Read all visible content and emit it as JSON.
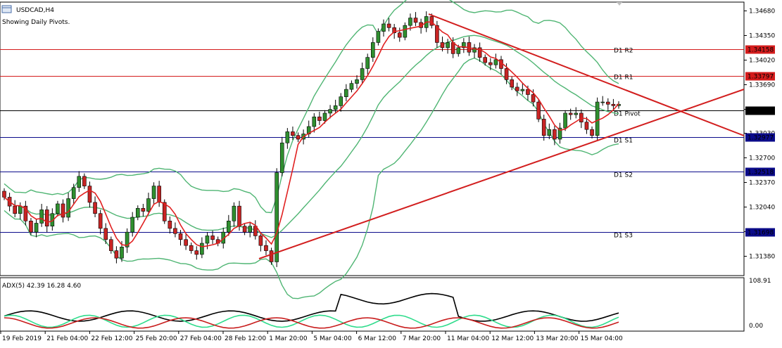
{
  "header": {
    "symbol": "USDCAD,H4",
    "info": "Showing Daily Pivots."
  },
  "chart_data": {
    "type": "candlestick",
    "ylim": [
      1.308,
      1.348
    ],
    "price_ticks": [
      "1.34680",
      "1.34350",
      "1.34020",
      "1.33690",
      "1.33360",
      "1.33030",
      "1.32700",
      "1.32370",
      "1.32040",
      "1.31710",
      "1.31380"
    ],
    "pivot_levels": [
      {
        "label": "D1 R2",
        "value": 1.34158,
        "tag": "1.34158",
        "line_color": "#d41c1c",
        "tag_color": "#d41c1c"
      },
      {
        "label": "D1 R1",
        "value": 1.33797,
        "tag": "1.33797",
        "line_color": "#d41c1c",
        "tag_color": "#d41c1c"
      },
      {
        "label": "D1 Pivot",
        "value": 1.33338,
        "tag": "1.33338",
        "line_color": "#000000",
        "tag_color": "#000000"
      },
      {
        "label": "D1 S1",
        "value": 1.32977,
        "tag": "1.32977",
        "line_color": "#0b0b8a",
        "tag_color": "#0b0b8a"
      },
      {
        "label": "D1 S2",
        "value": 1.32518,
        "tag": "1.32518",
        "line_color": "#0b0b8a",
        "tag_color": "#0b0b8a"
      },
      {
        "label": "D1 S3",
        "value": 1.31698,
        "tag": "1.31698",
        "line_color": "#0b0b8a",
        "tag_color": "#0b0b8a"
      }
    ],
    "ohlc_close": [
      1.3217,
      1.3205,
      1.3195,
      1.3205,
      1.3185,
      1.317,
      1.3182,
      1.32,
      1.3178,
      1.3195,
      1.3208,
      1.319,
      1.3215,
      1.323,
      1.3245,
      1.3232,
      1.321,
      1.3195,
      1.3175,
      1.316,
      1.3145,
      1.3135,
      1.315,
      1.317,
      1.319,
      1.3202,
      1.3198,
      1.3215,
      1.3232,
      1.321,
      1.3185,
      1.3175,
      1.3168,
      1.316,
      1.3152,
      1.3145,
      1.314,
      1.3155,
      1.3165,
      1.316,
      1.3155,
      1.317,
      1.3185,
      1.3205,
      1.3178,
      1.317,
      1.3178,
      1.3165,
      1.3152,
      1.3145,
      1.313,
      1.325,
      1.329,
      1.3305,
      1.33,
      1.3295,
      1.3302,
      1.3312,
      1.3325,
      1.332,
      1.333,
      1.3335,
      1.334,
      1.3352,
      1.3362,
      1.337,
      1.3375,
      1.339,
      1.3405,
      1.3425,
      1.344,
      1.345,
      1.3445,
      1.3438,
      1.3432,
      1.3448,
      1.3458,
      1.3452,
      1.3445,
      1.346,
      1.3448,
      1.3425,
      1.3418,
      1.3425,
      1.341,
      1.3418,
      1.3425,
      1.3412,
      1.3418,
      1.3405,
      1.3398,
      1.3395,
      1.3402,
      1.339,
      1.3375,
      1.3365,
      1.336,
      1.3362,
      1.3355,
      1.3345,
      1.3322,
      1.33,
      1.3308,
      1.3295,
      1.331,
      1.333,
      1.3328,
      1.333,
      1.3318,
      1.3308,
      1.33,
      1.3345,
      1.3345,
      1.3342,
      1.334,
      1.3342
    ],
    "candle_colors": {
      "up": "#2f8f2f",
      "down": "#c82424",
      "wick": "#000000"
    },
    "indicators": {
      "ma_color": "#e02020",
      "bands_color": "#4fb573"
    },
    "trendlines_color": "#d21e1e",
    "x_labels": [
      "19 Feb 2019",
      "21 Feb 04:00",
      "22 Feb 12:00",
      "25 Feb 20:00",
      "27 Feb 04:00",
      "28 Feb 12:00",
      "1 Mar 20:00",
      "5 Mar 04:00",
      "6 Mar 12:00",
      "7 Mar 20:00",
      "11 Mar 04:00",
      "12 Mar 12:00",
      "13 Mar 20:00",
      "15 Mar 04:00"
    ]
  },
  "adx": {
    "label": "ADX(5) 42.39 16.28 4.60",
    "ticks": [
      "108.91",
      "0.00"
    ],
    "colors": {
      "adx": "#000000",
      "plus_di": "#2fdc8c",
      "minus_di": "#c81c1c"
    }
  }
}
